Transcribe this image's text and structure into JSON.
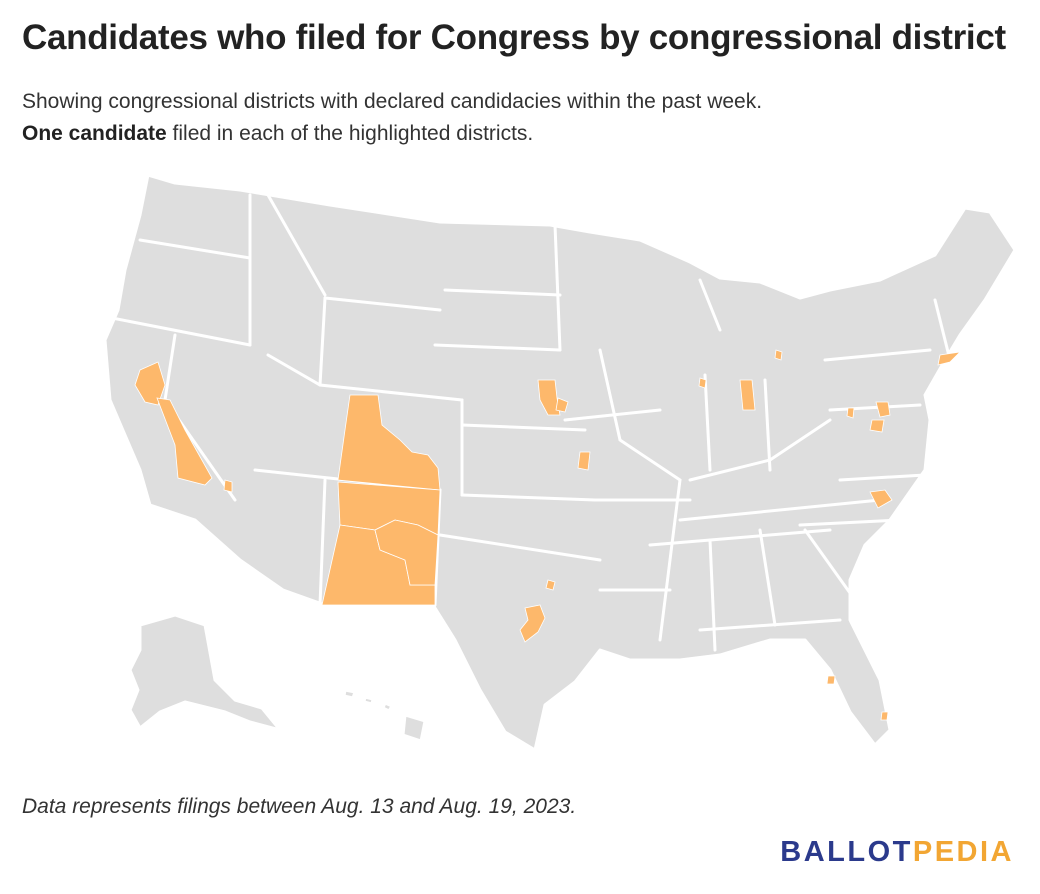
{
  "title": "Candidates who filed for Congress by congressional district",
  "subtitle": {
    "line1": "Showing congressional districts with declared candidacies within the past week.",
    "line2_bold": "One candidate",
    "line2_rest": " filed in each of the highlighted districts."
  },
  "footnote": "Data represents filings between Aug. 13 and Aug. 19, 2023.",
  "logo": {
    "part1": "BALLOT",
    "part2": "PEDIA"
  },
  "colors": {
    "base": "#dedede",
    "highlight": "#fdb86b",
    "state_border": "#ffffff",
    "logo_primary": "#2b3a8c",
    "logo_accent": "#f2a633"
  },
  "legend": {
    "highlight_meaning": "One candidate"
  },
  "highlighted_districts": [
    "northern-california-district",
    "eastern-california-district",
    "southern-nevada-district",
    "western-colorado-district",
    "new-mexico-district-a",
    "new-mexico-district-b",
    "new-mexico-district-c",
    "nebraska-district",
    "omaha-district",
    "kansas-city-district",
    "central-texas-district",
    "indiana-district",
    "chicago-district",
    "michigan-district",
    "new-york-district",
    "maryland-district",
    "virginia-district",
    "west-virginia-district",
    "north-carolina-district",
    "tampa-district",
    "miami-district",
    "dallas-district"
  ]
}
